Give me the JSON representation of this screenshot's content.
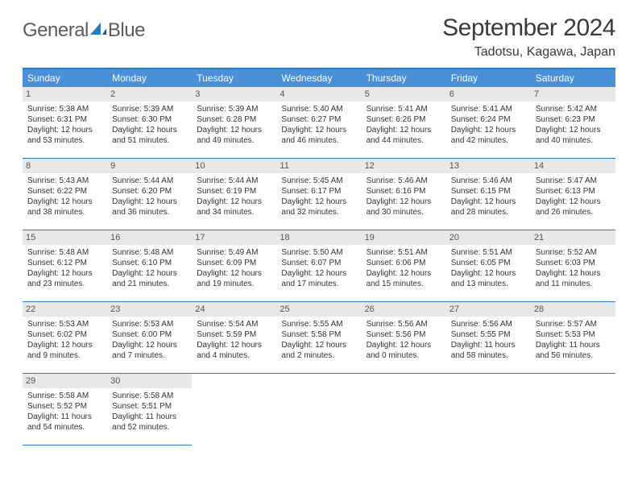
{
  "logo": {
    "general": "General",
    "blue": "Blue"
  },
  "header": {
    "month_title": "September 2024",
    "location": "Tadotsu, Kagawa, Japan"
  },
  "colors": {
    "header_bg": "#4a90d9",
    "rule": "#2f7bbf",
    "daynum_bg": "#e8e8e8",
    "text": "#333333"
  },
  "weekdays": [
    "Sunday",
    "Monday",
    "Tuesday",
    "Wednesday",
    "Thursday",
    "Friday",
    "Saturday"
  ],
  "calendar": {
    "first_weekday_index": 0,
    "days": [
      {
        "n": 1,
        "sr": "5:38 AM",
        "ss": "6:31 PM",
        "dl": "12 hours and 53 minutes."
      },
      {
        "n": 2,
        "sr": "5:39 AM",
        "ss": "6:30 PM",
        "dl": "12 hours and 51 minutes."
      },
      {
        "n": 3,
        "sr": "5:39 AM",
        "ss": "6:28 PM",
        "dl": "12 hours and 49 minutes."
      },
      {
        "n": 4,
        "sr": "5:40 AM",
        "ss": "6:27 PM",
        "dl": "12 hours and 46 minutes."
      },
      {
        "n": 5,
        "sr": "5:41 AM",
        "ss": "6:26 PM",
        "dl": "12 hours and 44 minutes."
      },
      {
        "n": 6,
        "sr": "5:41 AM",
        "ss": "6:24 PM",
        "dl": "12 hours and 42 minutes."
      },
      {
        "n": 7,
        "sr": "5:42 AM",
        "ss": "6:23 PM",
        "dl": "12 hours and 40 minutes."
      },
      {
        "n": 8,
        "sr": "5:43 AM",
        "ss": "6:22 PM",
        "dl": "12 hours and 38 minutes."
      },
      {
        "n": 9,
        "sr": "5:44 AM",
        "ss": "6:20 PM",
        "dl": "12 hours and 36 minutes."
      },
      {
        "n": 10,
        "sr": "5:44 AM",
        "ss": "6:19 PM",
        "dl": "12 hours and 34 minutes."
      },
      {
        "n": 11,
        "sr": "5:45 AM",
        "ss": "6:17 PM",
        "dl": "12 hours and 32 minutes."
      },
      {
        "n": 12,
        "sr": "5:46 AM",
        "ss": "6:16 PM",
        "dl": "12 hours and 30 minutes."
      },
      {
        "n": 13,
        "sr": "5:46 AM",
        "ss": "6:15 PM",
        "dl": "12 hours and 28 minutes."
      },
      {
        "n": 14,
        "sr": "5:47 AM",
        "ss": "6:13 PM",
        "dl": "12 hours and 26 minutes."
      },
      {
        "n": 15,
        "sr": "5:48 AM",
        "ss": "6:12 PM",
        "dl": "12 hours and 23 minutes."
      },
      {
        "n": 16,
        "sr": "5:48 AM",
        "ss": "6:10 PM",
        "dl": "12 hours and 21 minutes."
      },
      {
        "n": 17,
        "sr": "5:49 AM",
        "ss": "6:09 PM",
        "dl": "12 hours and 19 minutes."
      },
      {
        "n": 18,
        "sr": "5:50 AM",
        "ss": "6:07 PM",
        "dl": "12 hours and 17 minutes."
      },
      {
        "n": 19,
        "sr": "5:51 AM",
        "ss": "6:06 PM",
        "dl": "12 hours and 15 minutes."
      },
      {
        "n": 20,
        "sr": "5:51 AM",
        "ss": "6:05 PM",
        "dl": "12 hours and 13 minutes."
      },
      {
        "n": 21,
        "sr": "5:52 AM",
        "ss": "6:03 PM",
        "dl": "12 hours and 11 minutes."
      },
      {
        "n": 22,
        "sr": "5:53 AM",
        "ss": "6:02 PM",
        "dl": "12 hours and 9 minutes."
      },
      {
        "n": 23,
        "sr": "5:53 AM",
        "ss": "6:00 PM",
        "dl": "12 hours and 7 minutes."
      },
      {
        "n": 24,
        "sr": "5:54 AM",
        "ss": "5:59 PM",
        "dl": "12 hours and 4 minutes."
      },
      {
        "n": 25,
        "sr": "5:55 AM",
        "ss": "5:58 PM",
        "dl": "12 hours and 2 minutes."
      },
      {
        "n": 26,
        "sr": "5:56 AM",
        "ss": "5:56 PM",
        "dl": "12 hours and 0 minutes."
      },
      {
        "n": 27,
        "sr": "5:56 AM",
        "ss": "5:55 PM",
        "dl": "11 hours and 58 minutes."
      },
      {
        "n": 28,
        "sr": "5:57 AM",
        "ss": "5:53 PM",
        "dl": "11 hours and 56 minutes."
      },
      {
        "n": 29,
        "sr": "5:58 AM",
        "ss": "5:52 PM",
        "dl": "11 hours and 54 minutes."
      },
      {
        "n": 30,
        "sr": "5:58 AM",
        "ss": "5:51 PM",
        "dl": "11 hours and 52 minutes."
      }
    ]
  },
  "labels": {
    "sunrise": "Sunrise: ",
    "sunset": "Sunset: ",
    "daylight": "Daylight: "
  }
}
